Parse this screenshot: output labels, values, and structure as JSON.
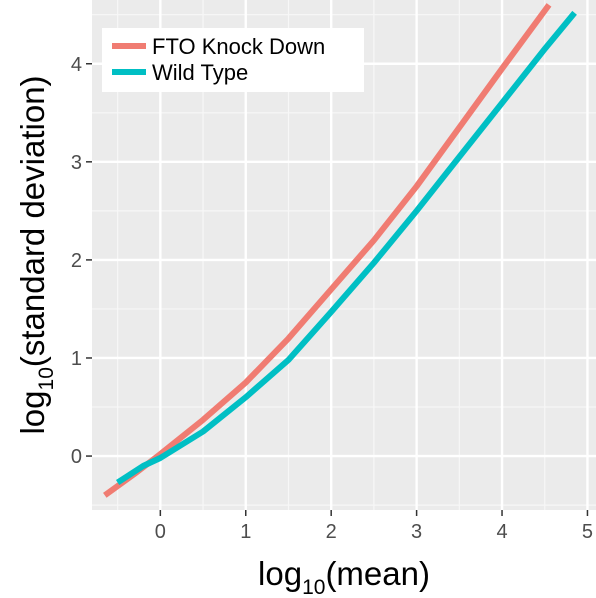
{
  "chart_data": {
    "type": "line",
    "xlabel_base": "log",
    "xlabel_sub": "10",
    "xlabel_rest": "(mean)",
    "ylabel_base": "log",
    "ylabel_sub": "10",
    "ylabel_rest": "(standard deviation)",
    "xlim": [
      -0.8,
      5.1
    ],
    "ylim": [
      -0.55,
      4.65
    ],
    "x_ticks": [
      0,
      1,
      2,
      3,
      4,
      5
    ],
    "y_ticks": [
      0,
      1,
      2,
      3,
      4
    ],
    "grid": true,
    "legend_position": "top-left",
    "series": [
      {
        "name": "FTO Knock Down",
        "color": "#f07c72",
        "x": [
          -0.65,
          -0.3,
          0,
          0.5,
          1,
          1.5,
          2,
          2.5,
          3,
          3.5,
          4,
          4.55
        ],
        "y": [
          -0.4,
          -0.18,
          0.02,
          0.37,
          0.75,
          1.2,
          1.7,
          2.2,
          2.75,
          3.35,
          3.95,
          4.6
        ]
      },
      {
        "name": "Wild Type",
        "color": "#00bfc4",
        "x": [
          -0.5,
          -0.2,
          0,
          0.5,
          1,
          1.5,
          2,
          2.5,
          3,
          3.5,
          4,
          4.5,
          4.85
        ],
        "y": [
          -0.27,
          -0.1,
          -0.02,
          0.25,
          0.6,
          0.98,
          1.47,
          1.97,
          2.5,
          3.05,
          3.6,
          4.15,
          4.52
        ]
      }
    ]
  }
}
